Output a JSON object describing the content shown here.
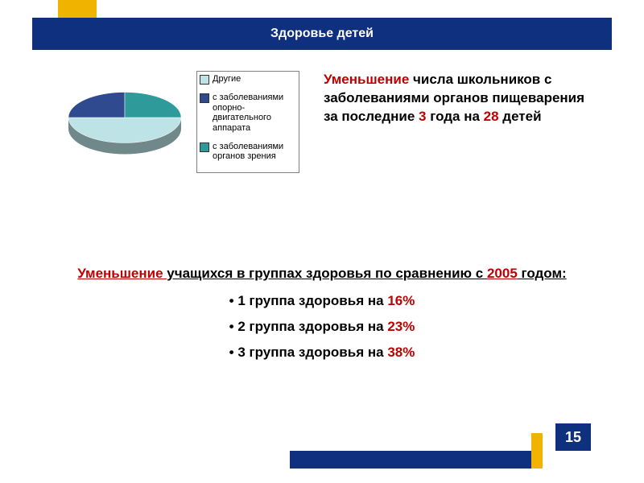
{
  "title": "Здоровье детей",
  "pie": {
    "type": "pie",
    "background_color": "#ffffff",
    "slices": [
      {
        "label": "Другие",
        "value": 50,
        "color": "#bde3e6"
      },
      {
        "label": "с заболеваниями опорно-двигательного аппарата",
        "value": 25,
        "color": "#2f4a8f"
      },
      {
        "label": "с заболеваниями органов зрения",
        "value": 25,
        "color": "#2e9a9a"
      }
    ],
    "rotate_deg": 0,
    "tilt": 0.45,
    "depth": 14,
    "legend_border": "#808080",
    "legend_fontsize": 11
  },
  "right_text": {
    "line1_red": "Уменьшение",
    "line1_rest": " числа школьников с заболеваниями органов пищеварения за последние ",
    "years_red": "3",
    "after_years": " года на ",
    "count_red": "28",
    "after_count": " детей"
  },
  "lower": {
    "heading_red_ul": "Уменьшение ",
    "heading_rest": "учащихся в группах здоровья по сравнению с ",
    "heading_year_red": "2005",
    "heading_tail": " годом:",
    "groups": [
      {
        "label": "1 группа здоровья на ",
        "value": "16%"
      },
      {
        "label": "2 группа здоровья  на ",
        "value": "23%"
      },
      {
        "label": "3 группа здоровья на ",
        "value": "38%"
      }
    ]
  },
  "page_number": "15",
  "colors": {
    "brand_blue": "#0f2f7f",
    "accent_yellow": "#f0b400",
    "text_red": "#c00000"
  }
}
